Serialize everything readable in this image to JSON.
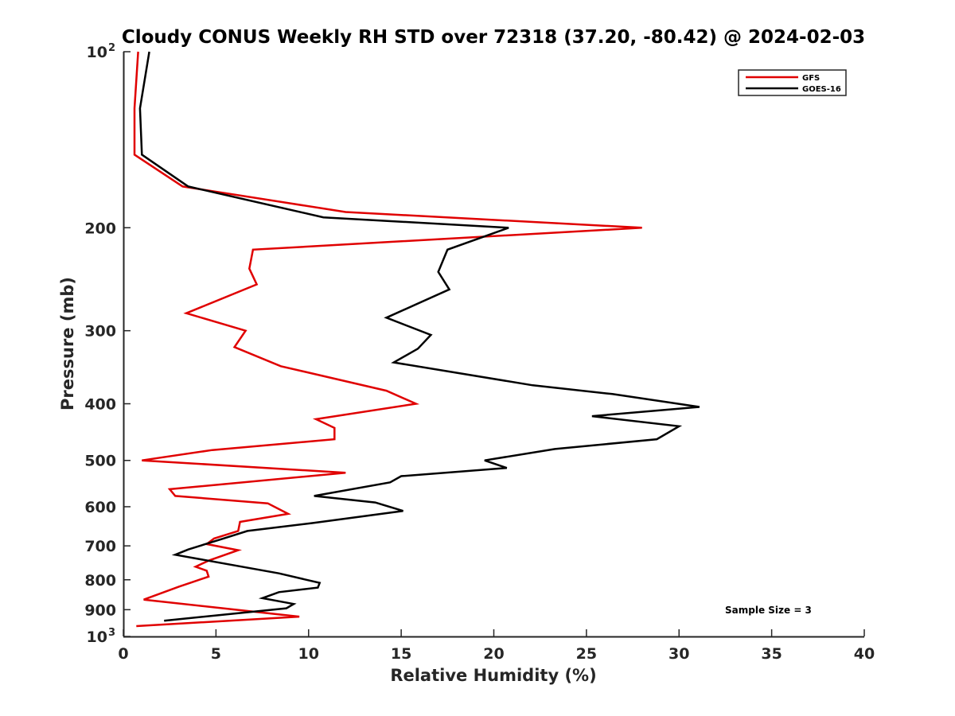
{
  "chart_data": {
    "type": "line",
    "title": "Cloudy CONUS Weekly RH STD over 72318 (37.20, -80.42) @ 2024-02-03",
    "xlabel": "Relative Humidity (%)",
    "ylabel": "Pressure (mb)",
    "xlim": [
      0,
      40
    ],
    "ylim": [
      100,
      1000
    ],
    "yscale": "log",
    "y_reversed": true,
    "x_ticks": [
      "0",
      "5",
      "10",
      "15",
      "20",
      "25",
      "30",
      "35",
      "40"
    ],
    "y_ticks": [
      {
        "value": 100,
        "label": "10",
        "exp": "2"
      },
      {
        "value": 200,
        "label": "200",
        "exp": ""
      },
      {
        "value": 300,
        "label": "300",
        "exp": ""
      },
      {
        "value": 400,
        "label": "400",
        "exp": ""
      },
      {
        "value": 500,
        "label": "500",
        "exp": ""
      },
      {
        "value": 600,
        "label": "600",
        "exp": ""
      },
      {
        "value": 700,
        "label": "700",
        "exp": ""
      },
      {
        "value": 800,
        "label": "800",
        "exp": ""
      },
      {
        "value": 900,
        "label": "900",
        "exp": ""
      },
      {
        "value": 1000,
        "label": "10",
        "exp": "3"
      }
    ],
    "legend_position": "top-right",
    "series": [
      {
        "name": "GFS",
        "color": "#e00000",
        "points": [
          [
            0.8,
            100
          ],
          [
            0.6,
            125
          ],
          [
            0.6,
            150
          ],
          [
            3.2,
            170
          ],
          [
            12,
            188
          ],
          [
            28,
            200
          ],
          [
            7,
            218
          ],
          [
            6.8,
            235
          ],
          [
            7.2,
            250
          ],
          [
            3.4,
            280
          ],
          [
            6.6,
            300
          ],
          [
            6,
            320
          ],
          [
            8.5,
            345
          ],
          [
            14.2,
            380
          ],
          [
            15.8,
            400
          ],
          [
            10.4,
            425
          ],
          [
            11.4,
            440
          ],
          [
            11.4,
            460
          ],
          [
            4.8,
            480
          ],
          [
            1,
            500
          ],
          [
            12,
            525
          ],
          [
            2.5,
            560
          ],
          [
            2.8,
            575
          ],
          [
            7.8,
            592
          ],
          [
            8.9,
            617
          ],
          [
            6.3,
            637
          ],
          [
            6.2,
            660
          ],
          [
            4.9,
            680
          ],
          [
            4.5,
            695
          ],
          [
            6.2,
            712
          ],
          [
            4.6,
            742
          ],
          [
            3.9,
            760
          ],
          [
            4.5,
            772
          ],
          [
            4.6,
            790
          ],
          [
            3.7,
            808
          ],
          [
            3,
            822
          ],
          [
            1.1,
            865
          ],
          [
            9.5,
            925
          ],
          [
            0.7,
            960
          ]
        ]
      },
      {
        "name": "GOES-16",
        "color": "#000000",
        "points": [
          [
            1.4,
            100
          ],
          [
            0.9,
            125
          ],
          [
            1,
            150
          ],
          [
            3.5,
            170
          ],
          [
            10.8,
            192
          ],
          [
            20.8,
            200
          ],
          [
            17.5,
            218
          ],
          [
            17,
            238
          ],
          [
            17.6,
            255
          ],
          [
            14.2,
            285
          ],
          [
            16.6,
            305
          ],
          [
            15.9,
            322
          ],
          [
            14.6,
            340
          ],
          [
            22.1,
            372
          ],
          [
            26.4,
            385
          ],
          [
            31.1,
            405
          ],
          [
            25.3,
            420
          ],
          [
            30,
            437
          ],
          [
            28.8,
            460
          ],
          [
            23.3,
            478
          ],
          [
            19.5,
            500
          ],
          [
            20.7,
            515
          ],
          [
            15,
            532
          ],
          [
            14.4,
            545
          ],
          [
            10.3,
            575
          ],
          [
            13.6,
            590
          ],
          [
            15.1,
            610
          ],
          [
            10.2,
            640
          ],
          [
            6.7,
            660
          ],
          [
            5.4,
            680
          ],
          [
            3.5,
            710
          ],
          [
            2.8,
            725
          ],
          [
            8.4,
            780
          ],
          [
            10.6,
            810
          ],
          [
            10.5,
            825
          ],
          [
            8.4,
            840
          ],
          [
            7.5,
            860
          ],
          [
            9.2,
            880
          ],
          [
            8.8,
            895
          ],
          [
            2.2,
            940
          ]
        ]
      }
    ],
    "annotation": "Sample Size = 3"
  }
}
